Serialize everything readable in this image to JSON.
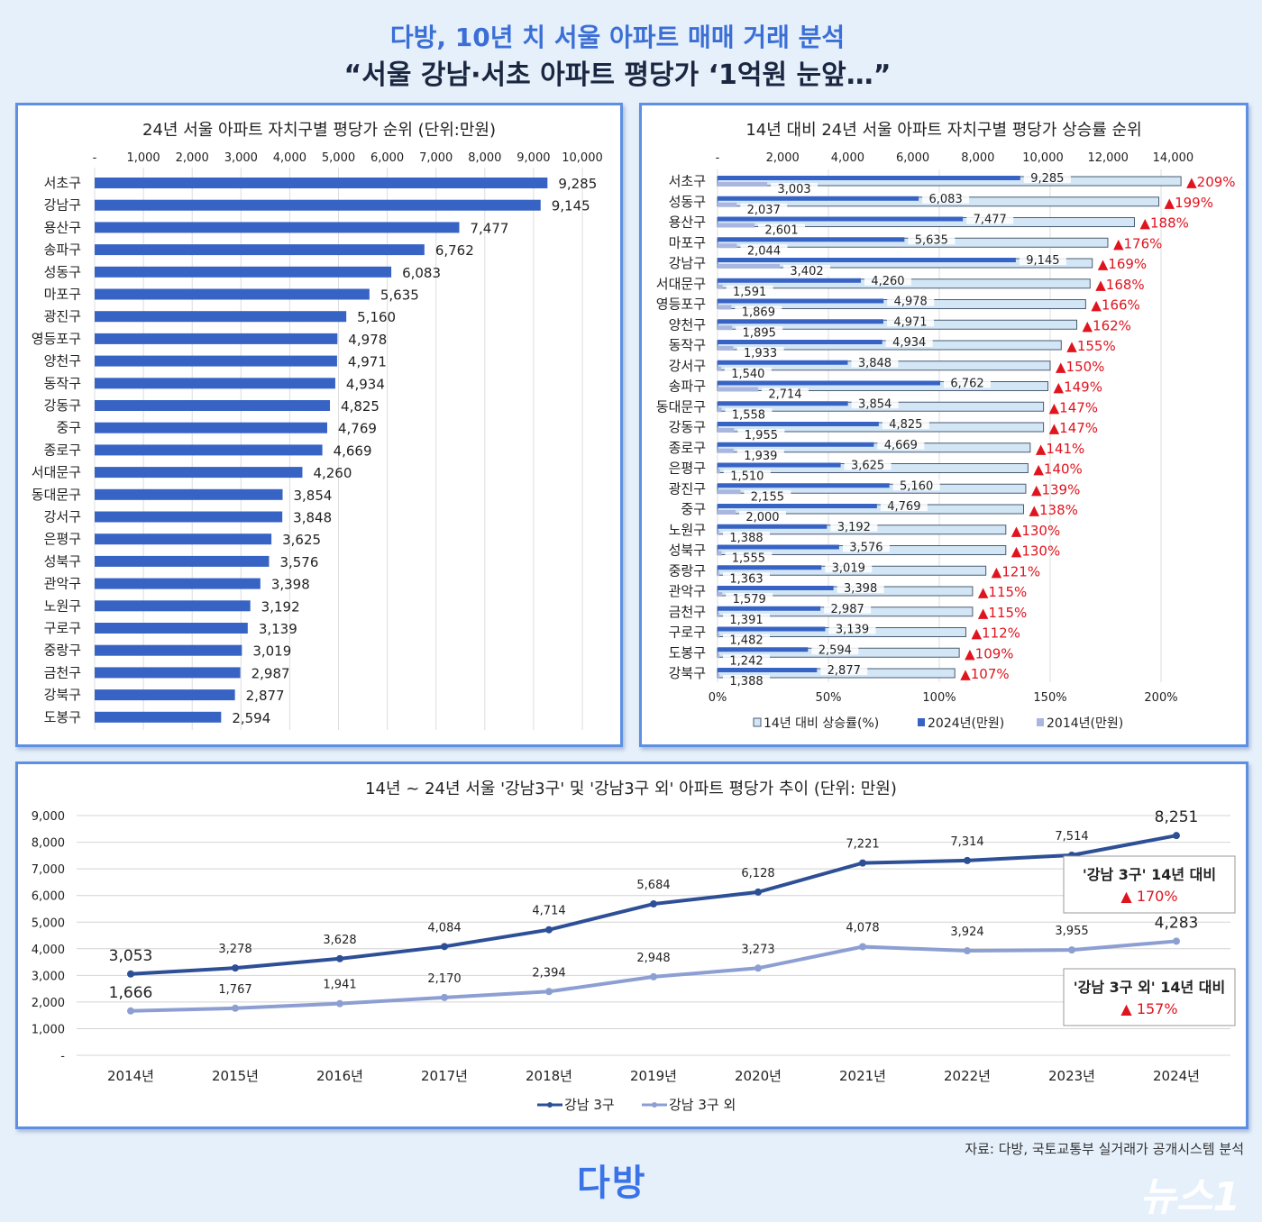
{
  "header": {
    "title": "다방, 10년 치 서울 아파트 매매 거래 분석",
    "subtitle": "“서울 강남·서초 아파트 평당가 ‘1억원 눈앞…”"
  },
  "footer": {
    "source": "자료: 다방, 국토교통부 실거래가 공개시스템 분석",
    "logo": "다방",
    "watermark": "뉴스1"
  },
  "colors": {
    "accent": "#3b6fd6",
    "bar_dark": "#3763c4",
    "bar_2014": "#a9b6e0",
    "rate_bar": "#d3e6f6",
    "up_red": "#e0141e",
    "line_gangnam": "#2d4f96",
    "line_other": "#8d9fd2"
  },
  "chart_data": [
    {
      "type": "bar",
      "orientation": "horizontal",
      "title": "24년 서울 아파트 자치구별 평당가 순위 (단위:만원)",
      "xlim": [
        0,
        10000
      ],
      "xticks": [
        "-",
        "1,000",
        "2,000",
        "3,000",
        "4,000",
        "5,000",
        "6,000",
        "7,000",
        "8,000",
        "9,000",
        "10,000"
      ],
      "grid": true,
      "categories": [
        "서초구",
        "강남구",
        "용산구",
        "송파구",
        "성동구",
        "마포구",
        "광진구",
        "영등포구",
        "양천구",
        "동작구",
        "강동구",
        "중구",
        "종로구",
        "서대문구",
        "동대문구",
        "강서구",
        "은평구",
        "성북구",
        "관악구",
        "노원구",
        "구로구",
        "중랑구",
        "금천구",
        "강북구",
        "도봉구"
      ],
      "values": [
        9285,
        9145,
        7477,
        6762,
        6083,
        5635,
        5160,
        4978,
        4971,
        4934,
        4825,
        4769,
        4669,
        4260,
        3854,
        3848,
        3625,
        3576,
        3398,
        3192,
        3139,
        3019,
        2987,
        2877,
        2594
      ]
    },
    {
      "type": "bar",
      "orientation": "horizontal",
      "title": "14년 대비 24년 서울 아파트 자치구별 평당가 상승률 순위",
      "xlim_top": [
        0,
        14000
      ],
      "xticks_top": [
        "-",
        "2,000",
        "4,000",
        "6,000",
        "8,000",
        "10,000",
        "12,000",
        "14,000"
      ],
      "xlim_bottom": [
        0,
        200
      ],
      "xticks_bottom": [
        "0%",
        "50%",
        "100%",
        "150%",
        "200%"
      ],
      "grid": true,
      "legend": "bottom",
      "categories": [
        "서초구",
        "성동구",
        "용산구",
        "마포구",
        "강남구",
        "서대문구",
        "영등포구",
        "양천구",
        "동작구",
        "강서구",
        "송파구",
        "동대문구",
        "강동구",
        "종로구",
        "은평구",
        "광진구",
        "중구",
        "노원구",
        "성북구",
        "중랑구",
        "관악구",
        "금천구",
        "구로구",
        "도봉구",
        "강북구"
      ],
      "series": [
        {
          "name": "14년 대비 상승률(%)",
          "values": [
            209,
            199,
            188,
            176,
            169,
            168,
            166,
            162,
            155,
            150,
            149,
            147,
            147,
            141,
            140,
            139,
            138,
            130,
            130,
            121,
            115,
            115,
            112,
            109,
            107
          ]
        },
        {
          "name": "2024년(만원)",
          "values": [
            9285,
            6083,
            7477,
            5635,
            9145,
            4260,
            4978,
            4971,
            4934,
            3848,
            6762,
            3854,
            4825,
            4669,
            3625,
            5160,
            4769,
            3192,
            3576,
            3019,
            3398,
            2987,
            3139,
            2594,
            2877
          ]
        },
        {
          "name": "2014년(만원)",
          "values": [
            3003,
            2037,
            2601,
            2044,
            3402,
            1591,
            1869,
            1895,
            1933,
            1540,
            2714,
            1558,
            1955,
            1939,
            1510,
            2155,
            2000,
            1388,
            1555,
            1363,
            1579,
            1391,
            1482,
            1242,
            1388
          ]
        }
      ]
    },
    {
      "type": "line",
      "title": "14년 ~ 24년 서울 '강남3구' 및 '강남3구 외' 아파트 평당가 추이 (단위: 만원)",
      "ylim": [
        0,
        9000
      ],
      "yticks": [
        "-",
        "1,000",
        "2,000",
        "3,000",
        "4,000",
        "5,000",
        "6,000",
        "7,000",
        "8,000",
        "9,000"
      ],
      "grid": true,
      "legend": "bottom",
      "categories": [
        "2014년",
        "2015년",
        "2016년",
        "2017년",
        "2018년",
        "2019년",
        "2020년",
        "2021년",
        "2022년",
        "2023년",
        "2024년"
      ],
      "series": [
        {
          "name": "강남 3구",
          "values": [
            3053,
            3278,
            3628,
            4084,
            4714,
            5684,
            6128,
            7221,
            7314,
            7514,
            8251
          ]
        },
        {
          "name": "강남 3구 외",
          "values": [
            1666,
            1767,
            1941,
            2170,
            2394,
            2948,
            3273,
            4078,
            3924,
            3955,
            4283
          ]
        }
      ],
      "annotations": [
        {
          "text": "'강남 3구' 14년 대비",
          "value": "▲ 170%"
        },
        {
          "text": "'강남 3구 외' 14년 대비",
          "value": "▲ 157%"
        }
      ]
    }
  ]
}
